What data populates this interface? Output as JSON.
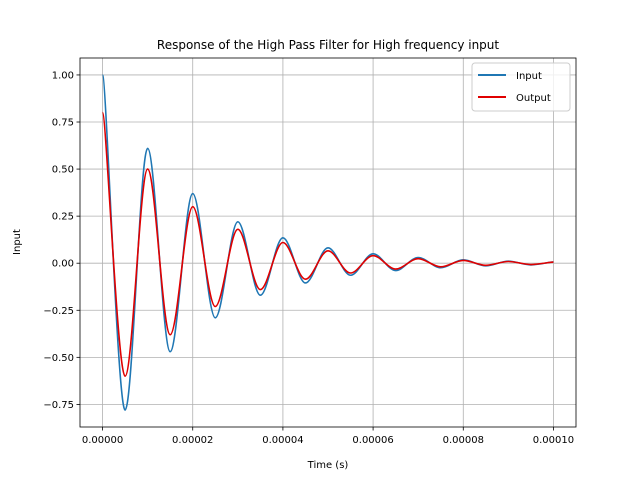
{
  "chart_data": {
    "type": "line",
    "title": "Response of the High Pass Filter for High frequency input",
    "xlabel": "Time (s)",
    "ylabel": "Input",
    "xlim": [
      -5e-06,
      0.000105
    ],
    "ylim": [
      -0.87,
      1.09
    ],
    "xticks": [
      0,
      2e-05,
      4e-05,
      6e-05,
      8e-05,
      0.0001
    ],
    "xtick_labels": [
      "0.00000",
      "0.00002",
      "0.00004",
      "0.00006",
      "0.00008",
      "0.00010"
    ],
    "yticks": [
      -0.75,
      -0.5,
      -0.25,
      0,
      0.25,
      0.5,
      0.75,
      1.0
    ],
    "ytick_labels": [
      "−0.75",
      "−0.50",
      "−0.25",
      "0.00",
      "0.25",
      "0.50",
      "0.75",
      "1.00"
    ],
    "grid": true,
    "legend_position": "top-right",
    "series": [
      {
        "name": "Input",
        "color": "#1f77b4",
        "x": [
          0,
          5e-06,
          1e-05,
          1.5e-05,
          2e-05,
          2.5e-05,
          3e-05,
          3.5e-05,
          4e-05,
          4.5e-05,
          5e-05,
          5.5e-05,
          6e-05,
          6.5e-05,
          7e-05,
          7.5e-05,
          8e-05,
          8.5e-05,
          9e-05,
          9.5e-05,
          0.0001
        ],
        "values": [
          1.0,
          -0.78,
          0.61,
          -0.47,
          0.37,
          -0.29,
          0.22,
          -0.17,
          0.135,
          -0.105,
          0.082,
          -0.064,
          0.05,
          -0.039,
          0.03,
          -0.024,
          0.018,
          -0.014,
          0.011,
          -0.009,
          0.007
        ]
      },
      {
        "name": "Output",
        "color": "#e00000",
        "x": [
          0,
          5e-06,
          1e-05,
          1.5e-05,
          2e-05,
          2.5e-05,
          3e-05,
          3.5e-05,
          4e-05,
          4.5e-05,
          5e-05,
          5.5e-05,
          6e-05,
          6.5e-05,
          7e-05,
          7.5e-05,
          8e-05,
          8.5e-05,
          9e-05,
          9.5e-05,
          0.0001
        ],
        "values": [
          0.8,
          -0.6,
          0.5,
          -0.38,
          0.3,
          -0.23,
          0.18,
          -0.14,
          0.11,
          -0.085,
          0.066,
          -0.052,
          0.04,
          -0.031,
          0.024,
          -0.019,
          0.015,
          -0.011,
          0.009,
          -0.007,
          0.006
        ]
      }
    ]
  }
}
